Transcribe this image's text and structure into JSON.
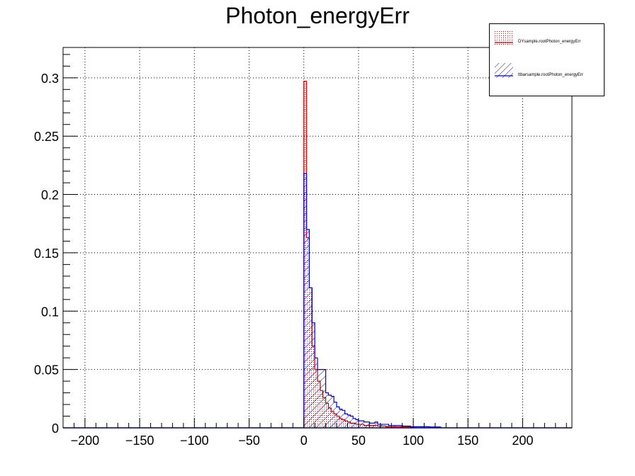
{
  "chart_data": {
    "type": "histogram",
    "title": "Photon_energyErr",
    "xlabel": "",
    "ylabel": "",
    "xlim": [
      -220,
      245
    ],
    "ylim": [
      0,
      0.326
    ],
    "grid": true,
    "legend_position": "top-right",
    "x_ticks": [
      "−200",
      "−150",
      "−100",
      "−50",
      "0",
      "50",
      "100",
      "150",
      "200"
    ],
    "x_tick_values": [
      -200,
      -150,
      -100,
      -50,
      0,
      50,
      100,
      150,
      200
    ],
    "y_ticks": [
      "0",
      "0.05",
      "0.1",
      "0.15",
      "0.2",
      "0.25",
      "0.3"
    ],
    "y_tick_values": [
      0,
      0.05,
      0.1,
      0.15,
      0.2,
      0.25,
      0.3
    ],
    "bin_width": 2.5,
    "bin_start": 0,
    "series": [
      {
        "name": "DYsample.rootPhoton_energyErr",
        "color": "#cc0000",
        "fill": "dotted",
        "values": [
          0.297,
          0.163,
          0.12,
          0.07,
          0.05,
          0.04,
          0.032,
          0.026,
          0.021,
          0.017,
          0.014,
          0.012,
          0.01,
          0.008,
          0.007,
          0.006,
          0.005,
          0.004,
          0.004,
          0.003,
          0.003,
          0.003,
          0.002,
          0.002,
          0.002,
          0.002,
          0.002,
          0.0015,
          0.0015,
          0.0015,
          0.001,
          0.001,
          0.001,
          0.001,
          0.001,
          0.001,
          0.0008,
          0.0008,
          0.0008,
          0.0006
        ]
      },
      {
        "name": "ttbarsample.rootPhoton_energyErr",
        "color": "#0000cc",
        "fill": "hatched",
        "values": [
          0.218,
          0.17,
          0.12,
          0.09,
          0.06,
          0.05,
          0.05,
          0.05,
          0.03,
          0.028,
          0.027,
          0.022,
          0.018,
          0.016,
          0.015,
          0.012,
          0.011,
          0.01,
          0.008,
          0.007,
          0.006,
          0.006,
          0.005,
          0.005,
          0.004,
          0.004,
          0.005,
          0.003,
          0.003,
          0.003,
          0.003,
          0.002,
          0.002,
          0.002,
          0.002,
          0.002,
          0.0015,
          0.0015,
          0.0015,
          0.001,
          0.001,
          0.001,
          0.001,
          0.001,
          0.001,
          0.001,
          0.0008,
          0.0008,
          0.0008,
          0.0008
        ]
      }
    ]
  }
}
